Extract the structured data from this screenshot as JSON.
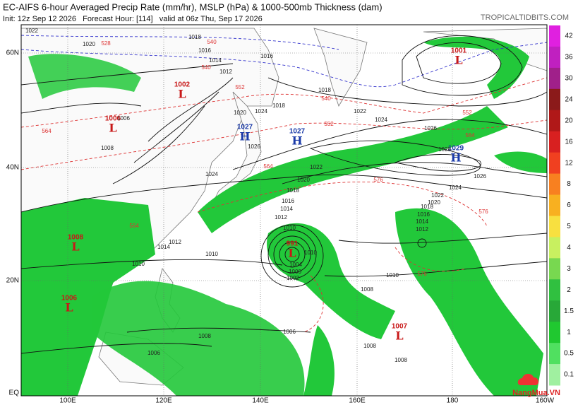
{
  "header": {
    "title": "EC-AIFS 6-hour Averaged Precip Rate (mm/hr), MSLP (hPa) & 1000-500mb Thickness (dam)",
    "subtitle": "Init: 12z Sep 12 2026   Forecast Hour: [114]   valid at 06z Thu, Sep 17 2026",
    "brand": "TROPICALTIDBITS.COM"
  },
  "axes": {
    "lat_labels": [
      "60N",
      "40N",
      "20N",
      "EQ"
    ],
    "lon_labels": [
      "100E",
      "120E",
      "140E",
      "160E",
      "180",
      "160W"
    ]
  },
  "colorbar": {
    "labels": [
      "42",
      "36",
      "30",
      "24",
      "20",
      "16",
      "12",
      "8",
      "6",
      "5",
      "4",
      "3",
      "2",
      "1.5",
      "1",
      "0.5",
      "0.1"
    ]
  },
  "centers": [
    {
      "type": "L",
      "value": "1002"
    },
    {
      "type": "L",
      "value": "1006"
    },
    {
      "type": "H",
      "value": "1027"
    },
    {
      "type": "H",
      "value": "1027"
    },
    {
      "type": "L",
      "value": "1001"
    },
    {
      "type": "H",
      "value": "1029"
    },
    {
      "type": "L",
      "value": "1008"
    },
    {
      "type": "L",
      "value": "1006"
    },
    {
      "type": "L",
      "value": "991"
    },
    {
      "type": "L",
      "value": "1007"
    }
  ],
  "isobar_labels": [
    "1022",
    "1020",
    "1018",
    "1016",
    "1014",
    "1012",
    "1010",
    "1016",
    "1018",
    "1020",
    "1024",
    "1026",
    "1024",
    "1022",
    "1020",
    "1018",
    "1016",
    "1014",
    "1012",
    "1010",
    "1018",
    "1022",
    "1024",
    "1026",
    "1028",
    "1026",
    "1024",
    "1022",
    "1020",
    "1018",
    "1016",
    "1014",
    "1012",
    "1010",
    "1008",
    "1006",
    "1004",
    "1000",
    "1002",
    "1010",
    "1008",
    "1006",
    "1010",
    "1008",
    "1008",
    "1014",
    "1012",
    "1006",
    "1008"
  ],
  "thickness_labels": [
    "564",
    "552",
    "552",
    "564",
    "564",
    "576",
    "576",
    "576",
    "564",
    "552",
    "540",
    "528",
    "540",
    "540"
  ],
  "watermark": "NangMua.VN"
}
